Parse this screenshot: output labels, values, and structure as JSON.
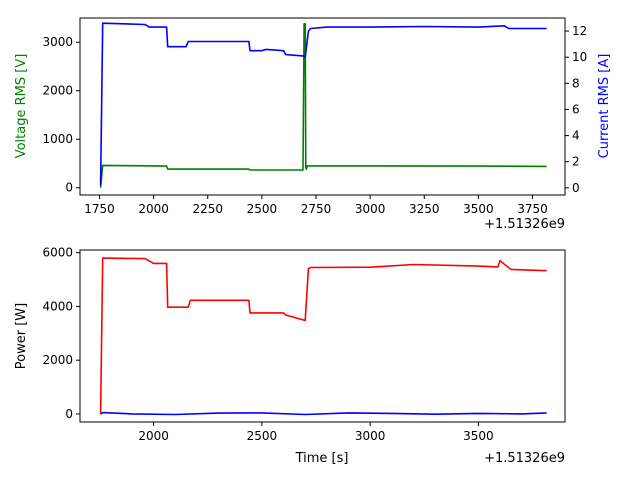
{
  "chart_data": [
    {
      "type": "line",
      "xlabel": "",
      "offset_label": "+1.51326e9",
      "x_ticks": [
        "1750",
        "2000",
        "2250",
        "2500",
        "2750",
        "3000",
        "3250",
        "3500",
        "3750"
      ],
      "x_tick_values": [
        1750,
        2000,
        2250,
        2500,
        2750,
        3000,
        3250,
        3500,
        3750
      ],
      "xlim": [
        1660,
        3900
      ],
      "y_left": {
        "label": "Voltage RMS [V]",
        "color": "#008000",
        "ylim": [
          -150,
          3500
        ],
        "ticks": [
          "0",
          "1000",
          "2000",
          "3000"
        ],
        "tick_values": [
          0,
          1000,
          2000,
          3000
        ]
      },
      "y_right": {
        "label": "Current RMS [A]",
        "color": "#0000ff",
        "ylim": [
          -0.55,
          13.0
        ],
        "ticks": [
          "0",
          "2",
          "4",
          "6",
          "8",
          "10",
          "12"
        ],
        "tick_values": [
          0,
          2,
          4,
          6,
          8,
          10,
          12
        ]
      },
      "series": [
        {
          "axis": "left",
          "color": "#008000",
          "x": [
            1755,
            1765,
            1900,
            2060,
            2065,
            2300,
            2440,
            2445,
            2690,
            2695,
            2700,
            2703,
            2705,
            2710,
            2715,
            3000,
            3500,
            3815
          ],
          "y": [
            0,
            460,
            455,
            445,
            385,
            385,
            385,
            365,
            365,
            3380,
            3380,
            420,
            380,
            450,
            450,
            450,
            445,
            440
          ]
        },
        {
          "axis": "right",
          "color": "#0000ff",
          "x": [
            1755,
            1765,
            1960,
            1980,
            2060,
            2065,
            2150,
            2160,
            2440,
            2445,
            2500,
            2520,
            2600,
            2610,
            2690,
            2700,
            2715,
            2725,
            2800,
            3000,
            3250,
            3500,
            3620,
            3640,
            3815
          ],
          "y": [
            0.2,
            12.6,
            12.5,
            12.3,
            12.3,
            10.8,
            10.8,
            11.2,
            11.2,
            10.5,
            10.5,
            10.6,
            10.5,
            10.2,
            10.1,
            10.0,
            12.0,
            12.2,
            12.3,
            12.3,
            12.35,
            12.3,
            12.4,
            12.2,
            12.2
          ]
        }
      ]
    },
    {
      "type": "line",
      "xlabel": "Time [s]",
      "ylabel": "Power [W]",
      "offset_label": "+1.51326e9",
      "x_ticks": [
        "2000",
        "2500",
        "3000",
        "3500"
      ],
      "x_tick_values": [
        2000,
        2500,
        3000,
        3500
      ],
      "xlim": [
        1660,
        3900
      ],
      "ylim": [
        -300,
        6100
      ],
      "y_ticks": [
        "0",
        "2000",
        "4000",
        "6000"
      ],
      "y_tick_values": [
        0,
        2000,
        4000,
        6000
      ],
      "series": [
        {
          "color": "#ff0000",
          "x": [
            1755,
            1765,
            1960,
            2000,
            2060,
            2065,
            2160,
            2170,
            2440,
            2445,
            2600,
            2610,
            2690,
            2700,
            2715,
            2725,
            3000,
            3200,
            3500,
            3590,
            3600,
            3650,
            3815
          ],
          "y": [
            0,
            5800,
            5780,
            5600,
            5600,
            3970,
            3970,
            4230,
            4230,
            3760,
            3760,
            3680,
            3500,
            3480,
            5400,
            5450,
            5460,
            5560,
            5500,
            5470,
            5700,
            5380,
            5330
          ]
        },
        {
          "color": "#0000ff",
          "x": [
            1755,
            1765,
            1900,
            2100,
            2300,
            2500,
            2700,
            2900,
            3100,
            3300,
            3500,
            3700,
            3815
          ],
          "y": [
            0,
            50,
            0,
            -20,
            30,
            40,
            -20,
            40,
            20,
            -10,
            20,
            0,
            40
          ]
        }
      ]
    }
  ]
}
